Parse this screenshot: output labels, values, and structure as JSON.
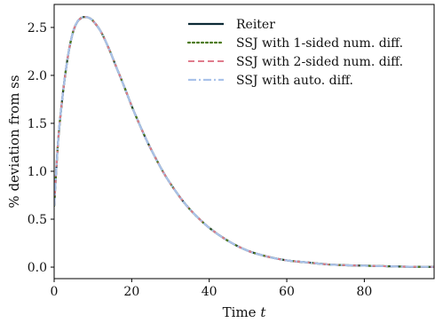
{
  "chart_data": {
    "type": "line",
    "xlabel": "Time",
    "xlabel_var": "t",
    "ylabel": "% deviation from ss",
    "xlim": [
      0,
      98
    ],
    "ylim": [
      -0.12,
      2.74
    ],
    "x_ticks": [
      0,
      20,
      40,
      60,
      80
    ],
    "x_tick_labels": [
      "0",
      "20",
      "40",
      "60",
      "80"
    ],
    "y_ticks": [
      0.0,
      0.5,
      1.0,
      1.5,
      2.0,
      2.5
    ],
    "y_tick_labels": [
      "0.0",
      "0.5",
      "1.0",
      "1.5",
      "2.0",
      "2.5"
    ],
    "legend_position": "top-right",
    "x": [
      0,
      1,
      2,
      3,
      4,
      5,
      6,
      7,
      8,
      9,
      10,
      12,
      14,
      16,
      18,
      20,
      22,
      24,
      26,
      28,
      30,
      33,
      36,
      40,
      45,
      50,
      55,
      60,
      65,
      70,
      75,
      80,
      85,
      90,
      95,
      98
    ],
    "series": [
      {
        "name": "Reiter",
        "color": "#0d2b36",
        "style": "solid",
        "values": [
          0.64,
          1.3,
          1.72,
          2.05,
          2.3,
          2.47,
          2.56,
          2.6,
          2.61,
          2.6,
          2.57,
          2.46,
          2.29,
          2.09,
          1.89,
          1.68,
          1.49,
          1.31,
          1.15,
          1.0,
          0.87,
          0.7,
          0.56,
          0.41,
          0.27,
          0.17,
          0.11,
          0.07,
          0.05,
          0.03,
          0.02,
          0.015,
          0.01,
          0.005,
          0.003,
          0.002
        ]
      },
      {
        "name": "SSJ with 1-sided num. diff.",
        "color": "#4c7a1a",
        "style": "dotted",
        "values": [
          0.64,
          1.3,
          1.72,
          2.05,
          2.3,
          2.47,
          2.56,
          2.6,
          2.61,
          2.6,
          2.57,
          2.46,
          2.29,
          2.09,
          1.89,
          1.68,
          1.49,
          1.31,
          1.15,
          1.0,
          0.87,
          0.7,
          0.56,
          0.41,
          0.27,
          0.17,
          0.11,
          0.07,
          0.05,
          0.03,
          0.02,
          0.015,
          0.01,
          0.005,
          0.003,
          0.002
        ]
      },
      {
        "name": "SSJ with 2-sided num. diff.",
        "color": "#e07b8c",
        "style": "dashed",
        "values": [
          0.64,
          1.3,
          1.72,
          2.05,
          2.3,
          2.47,
          2.56,
          2.6,
          2.61,
          2.6,
          2.57,
          2.46,
          2.29,
          2.09,
          1.89,
          1.68,
          1.49,
          1.31,
          1.15,
          1.0,
          0.87,
          0.7,
          0.56,
          0.41,
          0.27,
          0.17,
          0.11,
          0.07,
          0.05,
          0.03,
          0.02,
          0.015,
          0.01,
          0.005,
          0.003,
          0.002
        ]
      },
      {
        "name": "SSJ with auto. diff.",
        "color": "#a9c2ea",
        "style": "dashdot",
        "values": [
          0.64,
          1.3,
          1.72,
          2.05,
          2.3,
          2.47,
          2.56,
          2.6,
          2.61,
          2.6,
          2.57,
          2.46,
          2.29,
          2.09,
          1.89,
          1.68,
          1.49,
          1.31,
          1.15,
          1.0,
          0.87,
          0.7,
          0.56,
          0.41,
          0.27,
          0.17,
          0.11,
          0.07,
          0.05,
          0.03,
          0.02,
          0.015,
          0.01,
          0.005,
          0.003,
          0.002
        ]
      }
    ]
  }
}
